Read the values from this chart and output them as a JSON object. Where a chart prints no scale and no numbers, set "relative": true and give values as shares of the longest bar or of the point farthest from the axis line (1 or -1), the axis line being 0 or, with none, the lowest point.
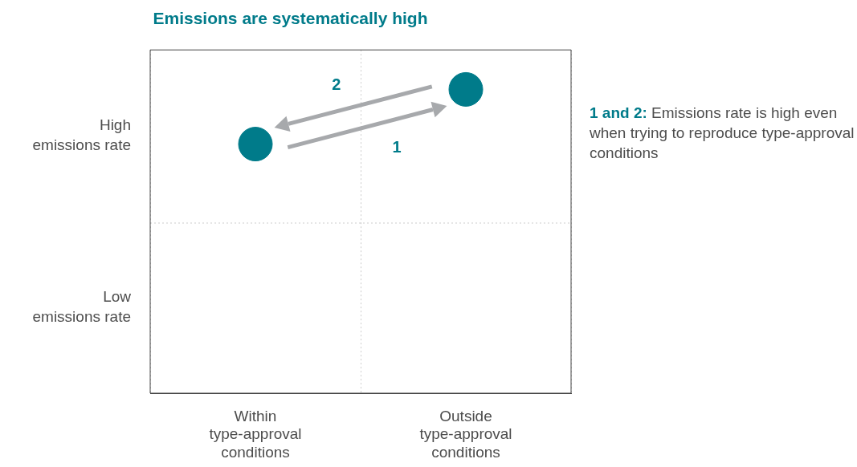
{
  "chart_data": {
    "type": "scatter",
    "title": "Emissions are systematically high",
    "categories": [
      "Within type-approval conditions",
      "Outside type-approval conditions"
    ],
    "values": [
      0.82,
      1
    ],
    "relative": true,
    "color": "#007b8a",
    "marker": "circle",
    "grid": "x",
    "legend": false,
    "ref_lines": [
      {
        "axis": "y",
        "value": 0.56,
        "label": null,
        "color": "#cccccc",
        "line_style": "dotted"
      }
    ],
    "annotations": [
      "1",
      "2",
      "High emissions rate",
      "Low emissions rate",
      "1 and 2:",
      "Emissions rate is high even when trying to reproduce type-approval conditions"
    ]
  }
}
